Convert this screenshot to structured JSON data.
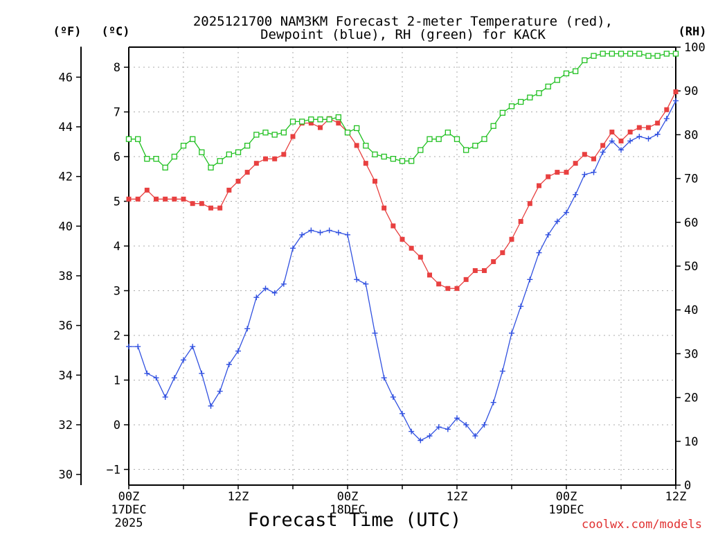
{
  "chart_data": {
    "type": "line",
    "title": [
      "2025121700 NAM3KM Forecast 2-meter Temperature (red),",
      "Dewpoint (blue), RH (green) for KACK"
    ],
    "xlabel": "Forecast Time (UTC)",
    "credit": "coolwx.com/models",
    "units": {
      "fahrenheit": "(ºF)",
      "celsius": "(ºC)",
      "rh": "(RH)"
    },
    "x_range_hours": [
      0,
      60
    ],
    "xticks": [
      {
        "hour": 0,
        "labels": [
          "00Z",
          "17DEC",
          "2025"
        ]
      },
      {
        "hour": 12,
        "labels": [
          "12Z"
        ]
      },
      {
        "hour": 24,
        "labels": [
          "00Z",
          "18DEC"
        ]
      },
      {
        "hour": 36,
        "labels": [
          "12Z"
        ]
      },
      {
        "hour": 48,
        "labels": [
          "00Z",
          "19DEC"
        ]
      },
      {
        "hour": 60,
        "labels": [
          "12Z"
        ]
      }
    ],
    "axes": {
      "celsius": {
        "range": [
          -1.35,
          8.45
        ],
        "ticks": [
          -1,
          0,
          1,
          2,
          3,
          4,
          5,
          6,
          7,
          8
        ],
        "tick_labels": [
          "−1",
          "0",
          "1",
          "2",
          "3",
          "4",
          "5",
          "6",
          "7",
          "8"
        ]
      },
      "fahrenheit": {
        "ticks": [
          30,
          32,
          34,
          36,
          38,
          40,
          42,
          44,
          46
        ]
      },
      "rh": {
        "range": [
          0,
          100
        ],
        "ticks": [
          0,
          10,
          20,
          30,
          40,
          50,
          60,
          70,
          80,
          90,
          100
        ]
      }
    },
    "grid": true,
    "series": [
      {
        "name": "2-meter Temperature",
        "units": "C",
        "color": "#e84040",
        "marker": "filled-square",
        "axis": "celsius",
        "values": [
          5.05,
          5.05,
          5.25,
          5.05,
          5.05,
          5.05,
          5.05,
          4.95,
          4.95,
          4.85,
          4.85,
          5.25,
          5.45,
          5.65,
          5.85,
          5.95,
          5.95,
          6.05,
          6.45,
          6.75,
          6.75,
          6.65,
          6.85,
          6.75,
          6.55,
          6.25,
          5.85,
          5.45,
          4.85,
          4.45,
          4.15,
          3.95,
          3.75,
          3.35,
          3.15,
          3.05,
          3.05,
          3.25,
          3.45,
          3.45,
          3.65,
          3.85,
          4.15,
          4.55,
          4.95,
          5.35,
          5.55,
          5.65,
          5.65,
          5.85,
          6.05,
          5.95,
          6.25,
          6.55,
          6.35,
          6.55,
          6.65,
          6.65,
          6.75,
          7.05,
          7.45
        ]
      },
      {
        "name": "Dewpoint",
        "units": "C",
        "color": "#3050e0",
        "marker": "plus",
        "axis": "celsius",
        "values": [
          1.75,
          1.75,
          1.15,
          1.05,
          0.62,
          1.05,
          1.45,
          1.75,
          1.15,
          0.42,
          0.75,
          1.35,
          1.65,
          2.15,
          2.85,
          3.05,
          2.95,
          3.15,
          3.95,
          4.25,
          4.35,
          4.3,
          4.35,
          4.3,
          4.25,
          3.25,
          3.15,
          2.05,
          1.05,
          0.62,
          0.25,
          -0.15,
          -0.35,
          -0.25,
          -0.05,
          -0.1,
          0.15,
          0.0,
          -0.25,
          0.0,
          0.5,
          1.2,
          2.05,
          2.65,
          3.25,
          3.85,
          4.25,
          4.55,
          4.75,
          5.15,
          5.6,
          5.65,
          6.1,
          6.35,
          6.15,
          6.35,
          6.45,
          6.4,
          6.5,
          6.85,
          7.25
        ]
      },
      {
        "name": "RH",
        "units": "%",
        "color": "#20c020",
        "marker": "open-square",
        "axis": "rh",
        "values": [
          79,
          79,
          74.5,
          74.5,
          72.5,
          75,
          77.5,
          79,
          76,
          72.5,
          74,
          75.5,
          76,
          77.5,
          80,
          80.5,
          80,
          80.5,
          83,
          83,
          83.5,
          83.5,
          83.5,
          84,
          80.5,
          81.5,
          77.5,
          75.5,
          75,
          74.5,
          74,
          74,
          76.5,
          79,
          79,
          80.5,
          79,
          76.5,
          77.5,
          79,
          82,
          85,
          86.5,
          87.5,
          88.5,
          89.5,
          91,
          92.5,
          94,
          94.5,
          97,
          98,
          98.5,
          98.5,
          98.5,
          98.5,
          98.5,
          98,
          98,
          98.5,
          98.5
        ]
      }
    ]
  }
}
